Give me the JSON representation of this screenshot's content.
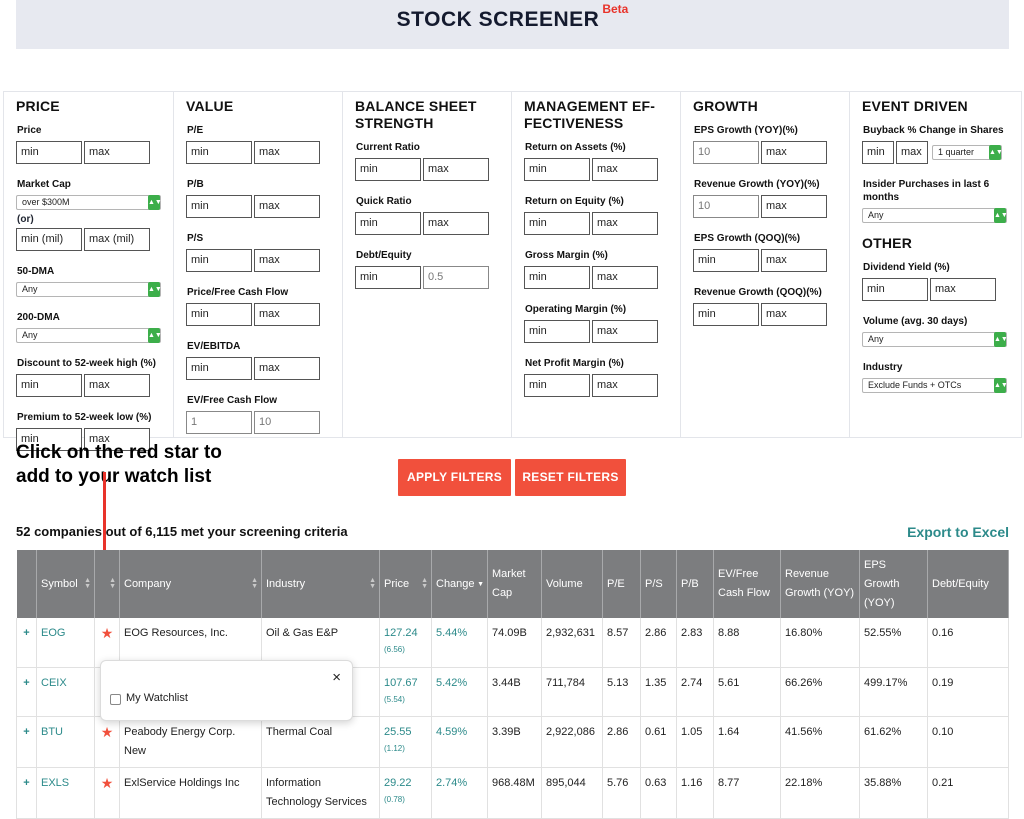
{
  "header": {
    "title": "STOCK SCREENER",
    "beta": "Beta"
  },
  "filters": {
    "price": {
      "heading": "PRICE",
      "price_label": "Price",
      "min": "min",
      "max": "max",
      "market_cap_label": "Market Cap",
      "market_cap_value": "over $300M",
      "or_label": "(or)",
      "mil_min": "min (mil)",
      "mil_max": "max (mil)",
      "dma50_label": "50-DMA",
      "dma50_value": "Any",
      "dma200_label": "200-DMA",
      "dma200_value": "Any",
      "discount_label": "Discount to 52-week high (%)",
      "premium_label": "Premium to 52-week low (%)"
    },
    "value": {
      "heading": "VALUE",
      "pe_label": "P/E",
      "pb_label": "P/B",
      "ps_label": "P/S",
      "pfcf_label": "Price/Free Cash Flow",
      "ev_ebitda_label": "EV/EBITDA",
      "ev_fcf_label": "EV/Free Cash Flow",
      "ev_fcf_min": "1",
      "ev_fcf_max": "10",
      "min": "min",
      "max": "max"
    },
    "balance": {
      "heading": "BALANCE SHEET STRENGTH",
      "current_label": "Current Ratio",
      "quick_label": "Quick Ratio",
      "de_label": "Debt/Equity",
      "de_max": "0.5",
      "min": "min",
      "max": "max"
    },
    "management": {
      "heading": "MANAGEMENT EF-FECTIVENESS",
      "roa_label": "Return on Assets (%)",
      "roe_label": "Return on Equity (%)",
      "gm_label": "Gross Margin (%)",
      "om_label": "Operating Margin (%)",
      "npm_label": "Net Profit Margin (%)",
      "min": "min",
      "max": "max"
    },
    "growth": {
      "heading": "GROWTH",
      "eps_yoy_label": "EPS Growth (YOY)(%)",
      "eps_yoy_min": "10",
      "rev_yoy_label": "Revenue Growth (YOY)(%)",
      "rev_yoy_min": "10",
      "eps_qoq_label": "EPS Growth (QOQ)(%)",
      "rev_qoq_label": "Revenue Growth (QOQ)(%)",
      "min": "min",
      "max": "max"
    },
    "event": {
      "heading": "EVENT DRIVEN",
      "buyback_label": "Buyback % Change in Shares",
      "buyback_period": "1 quarter",
      "insider_label": "Insider Purchases in last 6 months",
      "insider_value": "Any",
      "other_heading": "OTHER",
      "dividend_label": "Dividend Yield (%)",
      "volume_label": "Volume (avg. 30 days)",
      "volume_value": "Any",
      "industry_label": "Industry",
      "industry_value": "Exclude Funds + OTCs",
      "min": "min",
      "max": "max"
    }
  },
  "callout": {
    "line1": "Click on the red star to",
    "line2": "add to your watch list"
  },
  "buttons": {
    "apply": "APPLY FILTERS",
    "reset": "RESET FILTERS"
  },
  "results": {
    "summary": "52 companies out of 6,115 met your screening criteria",
    "export": "Export to Excel"
  },
  "table": {
    "headers": [
      "",
      "Symbol",
      "",
      "Company",
      "Industry",
      "Price",
      "Change",
      "Market Cap",
      "Volume",
      "P/E",
      "P/S",
      "P/B",
      "EV/Free Cash Flow",
      "Revenue Growth (YOY)",
      "EPS Growth (YOY)",
      "Debt/Equity"
    ],
    "rows": [
      {
        "plus": "+",
        "symbol": "EOG",
        "company": "EOG Resources, Inc.",
        "industry": "Oil & Gas E&P",
        "price": "127.24",
        "price_change": "(6.56)",
        "change": "5.44%",
        "mcap": "74.09B",
        "volume": "2,932,631",
        "pe": "8.57",
        "ps": "2.86",
        "pb": "2.83",
        "evfcf": "8.88",
        "rev": "16.80%",
        "eps": "52.55%",
        "de": "0.16"
      },
      {
        "plus": "+",
        "symbol": "CEIX",
        "company": "",
        "industry": "",
        "price": "107.67",
        "price_change": "(5.54)",
        "change": "5.42%",
        "mcap": "3.44B",
        "volume": "711,784",
        "pe": "5.13",
        "ps": "1.35",
        "pb": "2.74",
        "evfcf": "5.61",
        "rev": "66.26%",
        "eps": "499.17%",
        "de": "0.19"
      },
      {
        "plus": "+",
        "symbol": "BTU",
        "company": "Peabody Energy Corp. New",
        "industry": "Thermal Coal",
        "price": "25.55",
        "price_change": "(1.12)",
        "change": "4.59%",
        "mcap": "3.39B",
        "volume": "2,922,086",
        "pe": "2.86",
        "ps": "0.61",
        "pb": "1.05",
        "evfcf": "1.64",
        "rev": "41.56%",
        "eps": "61.62%",
        "de": "0.10"
      },
      {
        "plus": "+",
        "symbol": "EXLS",
        "company": "ExlService Holdings Inc",
        "industry": "Information Technology Services",
        "price": "29.22",
        "price_change": "(0.78)",
        "change": "2.74%",
        "mcap": "968.48M",
        "volume": "895,044",
        "pe": "5.76",
        "ps": "0.63",
        "pb": "1.16",
        "evfcf": "8.77",
        "rev": "22.18%",
        "eps": "35.88%",
        "de": "0.21"
      }
    ]
  },
  "popup": {
    "close": "×",
    "checkbox_label": "My Watchlist"
  },
  "colors": {
    "accent": "#2c8a8a",
    "button": "#f1503c",
    "star": "#f1503c",
    "header": "#7c7d7f"
  }
}
